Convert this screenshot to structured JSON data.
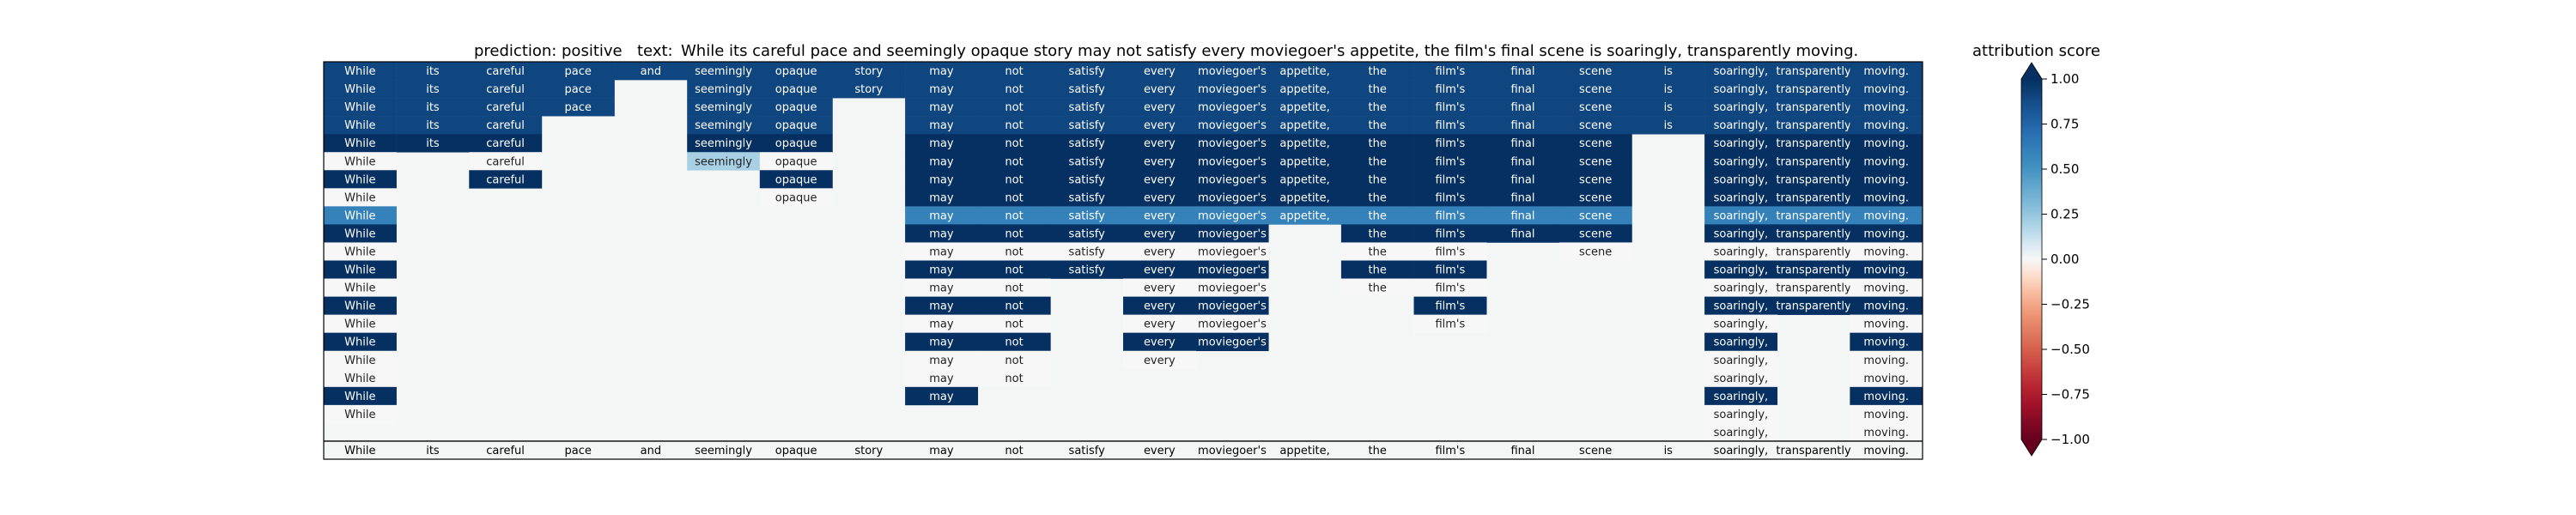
{
  "chart_data": {
    "type": "heatmap",
    "title": {
      "prediction_label": "prediction:",
      "prediction_value": "positive",
      "text_label": "text:",
      "text_value": "While its careful pace and seemingly opaque story may not satisfy every moviegoer's appetite, the film's final scene is soaringly, transparently moving."
    },
    "tokens": [
      "While",
      "its",
      "careful",
      "pace",
      "and",
      "seemingly",
      "opaque",
      "story",
      "may",
      "not",
      "satisfy",
      "every",
      "moviegoer's",
      "appetite,",
      "the",
      "film's",
      "final",
      "scene",
      "is",
      "soaringly,",
      "transparently",
      "moving."
    ],
    "rows": [
      [
        "0.9",
        "0.9",
        "0.9",
        "0.9",
        "0.9",
        "0.9",
        "0.9",
        "0.9",
        "0.9",
        "0.9",
        "0.9",
        "0.9",
        "0.9",
        "0.9",
        "0.9",
        "0.9",
        "0.9",
        "0.9",
        "0.9",
        "0.9",
        "0.9",
        "0.9"
      ],
      [
        "0.9",
        "0.9",
        "0.9",
        "0.9",
        "",
        "0.9",
        "0.9",
        "0.9",
        "0.9",
        "0.9",
        "0.9",
        "0.9",
        "0.9",
        "0.9",
        "0.9",
        "0.9",
        "0.9",
        "0.9",
        "0.9",
        "0.9",
        "0.9",
        "0.9"
      ],
      [
        "0.9",
        "0.9",
        "0.9",
        "0.9",
        "",
        "0.9",
        "0.9",
        "",
        "0.9",
        "0.9",
        "0.9",
        "0.9",
        "0.9",
        "0.9",
        "0.9",
        "0.9",
        "0.9",
        "0.9",
        "0.9",
        "0.9",
        "0.9",
        "0.9"
      ],
      [
        "0.9",
        "0.9",
        "0.9",
        "",
        "",
        "0.9",
        "0.9",
        "",
        "0.9",
        "0.9",
        "0.9",
        "0.9",
        "0.9",
        "0.9",
        "0.9",
        "0.9",
        "0.9",
        "0.9",
        "0.9",
        "0.9",
        "0.9",
        "0.9"
      ],
      [
        "1",
        "1",
        "1",
        "",
        "",
        "1",
        "1",
        "",
        "1",
        "1",
        "1",
        "1",
        "1",
        "1",
        "1",
        "1",
        "1",
        "1",
        "",
        "1",
        "1",
        "1"
      ],
      [
        "0",
        "",
        "0",
        "",
        "",
        "0.2",
        "0",
        "",
        "1",
        "1",
        "1",
        "1",
        "1",
        "1",
        "1",
        "1",
        "1",
        "1",
        "",
        "1",
        "1",
        "1"
      ],
      [
        "1",
        "",
        "1",
        "",
        "",
        "",
        "1",
        "",
        "1",
        "1",
        "1",
        "1",
        "1",
        "1",
        "1",
        "1",
        "1",
        "1",
        "",
        "1",
        "1",
        "1"
      ],
      [
        "0",
        "",
        "",
        "",
        "",
        "",
        "0",
        "",
        "1",
        "1",
        "1",
        "1",
        "1",
        "1",
        "1",
        "1",
        "1",
        "1",
        "",
        "1",
        "1",
        "1"
      ],
      [
        "0.6",
        "",
        "",
        "",
        "",
        "",
        "",
        "",
        "0.6",
        "0.6",
        "0.6",
        "0.6",
        "0.6",
        "0.6",
        "0.6",
        "0.6",
        "0.6",
        "0.6",
        "",
        "0.6",
        "0.6",
        "0.6"
      ],
      [
        "1",
        "",
        "",
        "",
        "",
        "",
        "",
        "",
        "1",
        "1",
        "1",
        "1",
        "1",
        "",
        "1",
        "1",
        "1",
        "1",
        "",
        "1",
        "1",
        "1"
      ],
      [
        "0",
        "",
        "",
        "",
        "",
        "",
        "",
        "",
        "0",
        "0",
        "0",
        "0",
        "0",
        "",
        "0",
        "0",
        "",
        "0",
        "",
        "0",
        "0",
        "0"
      ],
      [
        "1",
        "",
        "",
        "",
        "",
        "",
        "",
        "",
        "1",
        "1",
        "1",
        "1",
        "1",
        "",
        "1",
        "1",
        "",
        "",
        "",
        "1",
        "1",
        "1"
      ],
      [
        "0",
        "",
        "",
        "",
        "",
        "",
        "",
        "",
        "0",
        "0",
        "",
        "0",
        "0",
        "",
        "0",
        "0",
        "",
        "",
        "",
        "0",
        "0",
        "0"
      ],
      [
        "1",
        "",
        "",
        "",
        "",
        "",
        "",
        "",
        "1",
        "1",
        "",
        "1",
        "1",
        "",
        "",
        "1",
        "",
        "",
        "",
        "1",
        "1",
        "1"
      ],
      [
        "0",
        "",
        "",
        "",
        "",
        "",
        "",
        "",
        "0",
        "0",
        "",
        "0",
        "0",
        "",
        "",
        "0",
        "",
        "",
        "",
        "0",
        "",
        "0"
      ],
      [
        "1",
        "",
        "",
        "",
        "",
        "",
        "",
        "",
        "1",
        "1",
        "",
        "1",
        "1",
        "",
        "",
        "",
        "",
        "",
        "",
        "1",
        "",
        "1"
      ],
      [
        "0",
        "",
        "",
        "",
        "",
        "",
        "",
        "",
        "0",
        "0",
        "",
        "0",
        "",
        "",
        "",
        "",
        "",
        "",
        "",
        "0",
        "",
        "0"
      ],
      [
        "0",
        "",
        "",
        "",
        "",
        "",
        "",
        "",
        "0",
        "0",
        "",
        "",
        "",
        "",
        "",
        "",
        "",
        "",
        "",
        "0",
        "",
        "0"
      ],
      [
        "1",
        "",
        "",
        "",
        "",
        "",
        "",
        "",
        "1",
        "",
        "",
        "",
        "",
        "",
        "",
        "",
        "",
        "",
        "",
        "1",
        "",
        "1"
      ],
      [
        "0",
        "",
        "",
        "",
        "",
        "",
        "",
        "",
        "",
        "",
        "",
        "",
        "",
        "",
        "",
        "",
        "",
        "",
        "",
        "0",
        "",
        "0"
      ],
      [
        "",
        "",
        "",
        "",
        "",
        "",
        "",
        "",
        "",
        "",
        "",
        "",
        "",
        "",
        "",
        "",
        "",
        "",
        "",
        "0",
        "",
        "0"
      ]
    ],
    "xlim": [
      0,
      22
    ],
    "grid": false,
    "colorbar": {
      "label": "attribution score",
      "range": [
        -1.0,
        1.0
      ],
      "ticks": [
        "1.00",
        "0.75",
        "0.50",
        "0.25",
        "0.00",
        "−0.25",
        "−0.50",
        "−0.75",
        "−1.00"
      ],
      "tick_values": [
        1.0,
        0.75,
        0.5,
        0.25,
        0.0,
        -0.25,
        -0.5,
        -0.75,
        -1.0
      ],
      "colormap": "RdBu",
      "extend": "both"
    }
  }
}
